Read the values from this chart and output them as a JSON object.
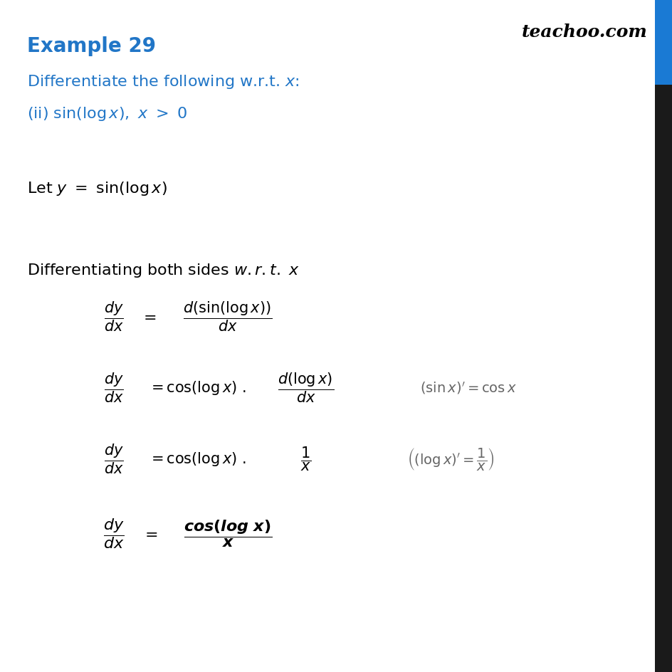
{
  "background_color": "#ffffff",
  "title_color": "#2176c7",
  "blue_color": "#2176c7",
  "sidebar_blue": "#1a7ad4",
  "text_color": "#000000",
  "teachoo_text": "teachoo.com",
  "title": "Example 29",
  "fig_width": 9.45,
  "fig_height": 9.45,
  "dpi": 100
}
